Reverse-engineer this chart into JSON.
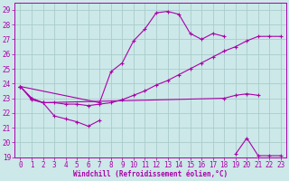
{
  "xlabel": "Windchill (Refroidissement éolien,°C)",
  "xlim": [
    -0.5,
    23.5
  ],
  "ylim": [
    19,
    29.5
  ],
  "yticks": [
    19,
    20,
    21,
    22,
    23,
    24,
    25,
    26,
    27,
    28,
    29
  ],
  "xticks": [
    0,
    1,
    2,
    3,
    4,
    5,
    6,
    7,
    8,
    9,
    10,
    11,
    12,
    13,
    14,
    15,
    16,
    17,
    18,
    19,
    20,
    21,
    22,
    23
  ],
  "bg_color": "#cce8e8",
  "grid_color": "#aacccc",
  "line_color": "#aa00aa",
  "lines": [
    {
      "x": [
        0,
        1,
        2,
        3,
        4,
        5,
        6,
        7
      ],
      "y": [
        23.8,
        23.0,
        22.7,
        21.8,
        21.6,
        21.4,
        21.1,
        21.5
      ]
    },
    {
      "x": [
        0,
        7,
        8,
        9,
        10,
        11,
        12,
        13,
        14,
        15,
        16,
        17,
        18
      ],
      "y": [
        23.8,
        22.7,
        24.8,
        25.4,
        26.9,
        27.7,
        28.8,
        28.9,
        28.7,
        27.4,
        27.0,
        27.4,
        27.2
      ]
    },
    {
      "x": [
        0,
        1,
        2,
        18,
        19,
        20,
        21
      ],
      "y": [
        23.8,
        22.9,
        22.7,
        23.0,
        23.2,
        23.3,
        23.2
      ]
    },
    {
      "x": [
        19,
        20,
        21,
        22,
        23
      ],
      "y": [
        19.2,
        20.3,
        19.1,
        19.1,
        19.1
      ]
    },
    {
      "x": [
        0,
        1,
        2,
        3,
        4,
        5,
        6,
        7,
        8,
        9,
        10,
        11,
        12,
        13,
        14,
        15,
        16,
        17,
        18,
        19,
        20,
        21,
        22,
        23
      ],
      "y": [
        23.8,
        23.0,
        22.7,
        22.7,
        22.6,
        22.6,
        22.5,
        22.6,
        22.7,
        22.9,
        23.2,
        23.5,
        23.9,
        24.2,
        24.6,
        25.0,
        25.4,
        25.8,
        26.2,
        26.5,
        26.9,
        27.2,
        27.2,
        27.2
      ]
    }
  ],
  "tick_fontsize": 5.5,
  "xlabel_fontsize": 5.5
}
